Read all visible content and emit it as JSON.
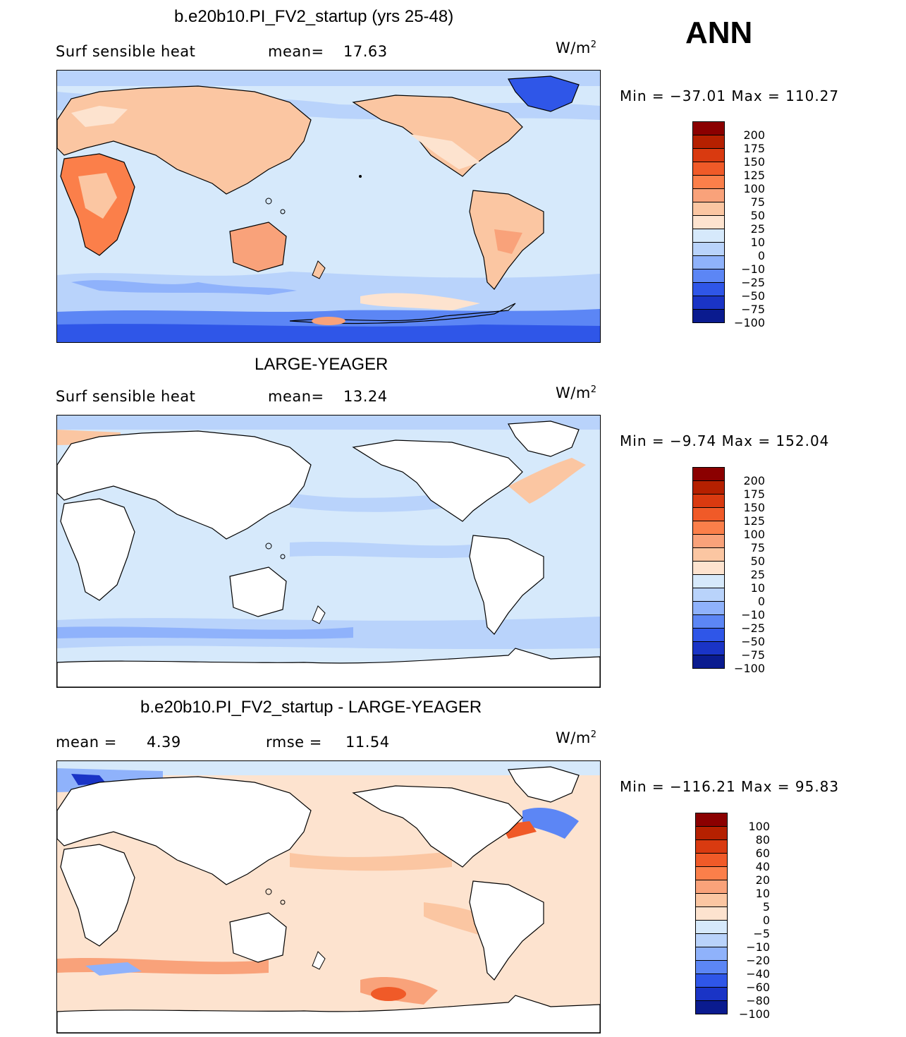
{
  "season": "ANN",
  "panels": [
    {
      "title": "b.e20b10.PI_FV2_startup (yrs 25-48)",
      "variable": "Surf sensible heat",
      "stat_left": "mean=",
      "stat_left_value": "17.63",
      "stat_right": "",
      "stat_right_value": "",
      "units": "W/m",
      "units_sup": "2",
      "minmax": "Min = −37.01 Max = 110.27",
      "levels": [
        "200",
        "175",
        "150",
        "125",
        "100",
        "75",
        "50",
        "25",
        "10",
        "0",
        "−10",
        "−25",
        "−50",
        "−75",
        "−100"
      ],
      "colors": [
        "#8b0000",
        "#b52000",
        "#d93a10",
        "#f05a28",
        "#fb7f4a",
        "#f9a27a",
        "#fbc6a2",
        "#fde3cf",
        "#d6e9fb",
        "#b9d3fb",
        "#8fb2fb",
        "#5c86f5",
        "#2f56e8",
        "#1a34c6",
        "#0a1b8f"
      ],
      "ocean_color": "#d6e9fb",
      "land_color": "#fbc6a2"
    },
    {
      "title": "LARGE-YEAGER",
      "variable": "Surf sensible heat",
      "stat_left": "mean=",
      "stat_left_value": "13.24",
      "stat_right": "",
      "stat_right_value": "",
      "units": "W/m",
      "units_sup": "2",
      "minmax": "Min =  −9.74 Max = 152.04",
      "levels": [
        "200",
        "175",
        "150",
        "125",
        "100",
        "75",
        "50",
        "25",
        "10",
        "0",
        "−10",
        "−25",
        "−50",
        "−75",
        "−100"
      ],
      "colors": [
        "#8b0000",
        "#b52000",
        "#d93a10",
        "#f05a28",
        "#fb7f4a",
        "#f9a27a",
        "#fbc6a2",
        "#fde3cf",
        "#d6e9fb",
        "#b9d3fb",
        "#8fb2fb",
        "#5c86f5",
        "#2f56e8",
        "#1a34c6",
        "#0a1b8f"
      ],
      "ocean_color": "#d6e9fb",
      "land_color": "#ffffff"
    },
    {
      "title": "b.e20b10.PI_FV2_startup - LARGE-YEAGER",
      "variable": "",
      "stat_left": "mean =",
      "stat_left_value": "4.39",
      "stat_right": "rmse =",
      "stat_right_value": "11.54",
      "units": "W/m",
      "units_sup": "2",
      "minmax": "Min = −116.21 Max =  95.83",
      "levels": [
        "100",
        "80",
        "60",
        "40",
        "20",
        "10",
        "5",
        "0",
        "−5",
        "−10",
        "−20",
        "−40",
        "−60",
        "−80",
        "−100"
      ],
      "colors": [
        "#8b0000",
        "#b52000",
        "#d93a10",
        "#f05a28",
        "#fb7f4a",
        "#f9a27a",
        "#fbc6a2",
        "#fde3cf",
        "#d6e9fb",
        "#b9d3fb",
        "#8fb2fb",
        "#5c86f5",
        "#2f56e8",
        "#1a34c6",
        "#0a1b8f"
      ],
      "ocean_color": "#fde3cf",
      "land_color": "#ffffff"
    }
  ]
}
